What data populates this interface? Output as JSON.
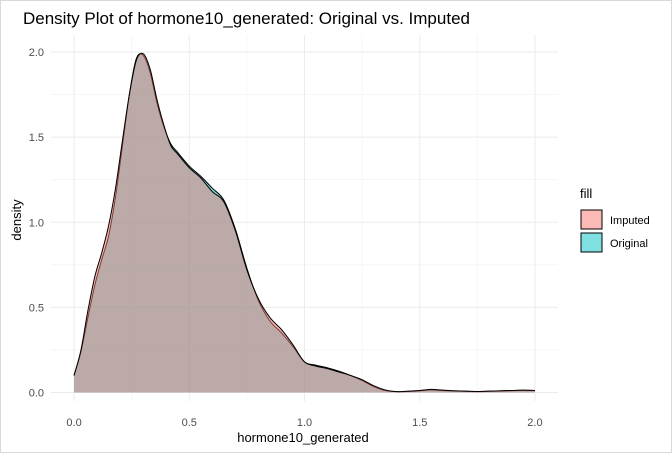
{
  "chart_data": {
    "type": "area",
    "title": "Density Plot of hormone10_generated: Original vs. Imputed",
    "xlabel": "hormone10_generated",
    "ylabel": "density",
    "xlim": [
      -0.1,
      2.1
    ],
    "ylim": [
      -0.05,
      2.1
    ],
    "xticks": [
      0.0,
      0.5,
      1.0,
      1.5,
      2.0
    ],
    "xtick_labels": [
      "0.0",
      "0.5",
      "1.0",
      "1.5",
      "2.0"
    ],
    "yticks": [
      0.0,
      0.5,
      1.0,
      1.5,
      2.0
    ],
    "ytick_labels": [
      "0.0",
      "0.5",
      "1.0",
      "1.5",
      "2.0"
    ],
    "grid": true,
    "legend": {
      "title": "fill",
      "position": "right"
    },
    "series": [
      {
        "name": "Imputed",
        "color": "#F8766D",
        "x": [
          0.0,
          0.03,
          0.06,
          0.09,
          0.12,
          0.15,
          0.18,
          0.21,
          0.24,
          0.27,
          0.3,
          0.33,
          0.36,
          0.39,
          0.42,
          0.45,
          0.5,
          0.55,
          0.6,
          0.65,
          0.7,
          0.75,
          0.8,
          0.85,
          0.9,
          0.95,
          1.0,
          1.05,
          1.1,
          1.15,
          1.2,
          1.25,
          1.3,
          1.35,
          1.4,
          1.45,
          1.5,
          1.55,
          1.6,
          1.65,
          1.7,
          1.75,
          1.8,
          1.85,
          1.9,
          1.95,
          2.0
        ],
        "values": [
          0.1,
          0.25,
          0.48,
          0.68,
          0.82,
          0.98,
          1.2,
          1.48,
          1.75,
          1.95,
          1.99,
          1.9,
          1.72,
          1.57,
          1.45,
          1.4,
          1.32,
          1.26,
          1.18,
          1.12,
          0.95,
          0.72,
          0.55,
          0.44,
          0.37,
          0.28,
          0.18,
          0.155,
          0.14,
          0.12,
          0.1,
          0.075,
          0.04,
          0.015,
          0.005,
          0.008,
          0.012,
          0.018,
          0.014,
          0.01,
          0.008,
          0.006,
          0.008,
          0.01,
          0.012,
          0.014,
          0.012
        ]
      },
      {
        "name": "Original",
        "color": "#00BFC4",
        "x": [
          0.0,
          0.03,
          0.06,
          0.09,
          0.12,
          0.15,
          0.18,
          0.21,
          0.24,
          0.27,
          0.3,
          0.33,
          0.36,
          0.39,
          0.42,
          0.45,
          0.5,
          0.55,
          0.6,
          0.65,
          0.7,
          0.75,
          0.8,
          0.85,
          0.9,
          0.95,
          1.0,
          1.05,
          1.1,
          1.15,
          1.2,
          1.25,
          1.3,
          1.35,
          1.4,
          1.45,
          1.5,
          1.55,
          1.6,
          1.65,
          1.7,
          1.75,
          1.8,
          1.85,
          1.9,
          1.95,
          2.0
        ],
        "values": [
          0.1,
          0.24,
          0.44,
          0.63,
          0.78,
          0.92,
          1.15,
          1.45,
          1.75,
          1.96,
          1.98,
          1.88,
          1.7,
          1.56,
          1.46,
          1.41,
          1.33,
          1.27,
          1.2,
          1.13,
          0.96,
          0.73,
          0.54,
          0.42,
          0.35,
          0.27,
          0.18,
          0.16,
          0.145,
          0.125,
          0.1,
          0.07,
          0.035,
          0.012,
          0.004,
          0.006,
          0.01,
          0.015,
          0.012,
          0.009,
          0.007,
          0.005,
          0.007,
          0.009,
          0.011,
          0.013,
          0.011
        ]
      }
    ]
  }
}
